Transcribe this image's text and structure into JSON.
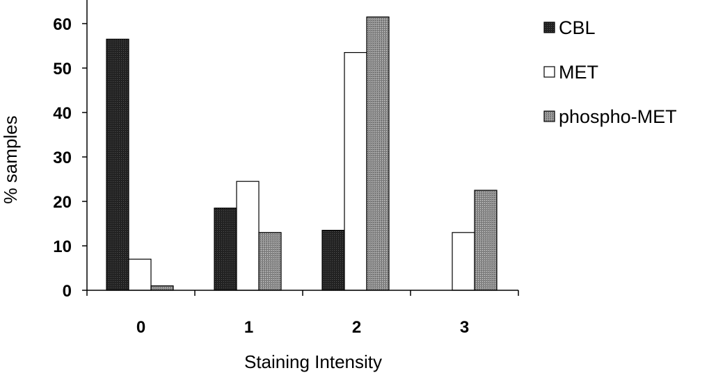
{
  "chart_data": {
    "type": "bar",
    "categories": [
      "0",
      "1",
      "2",
      "3"
    ],
    "series": [
      {
        "name": "CBL",
        "values": [
          56.5,
          18.5,
          13.5,
          0
        ],
        "color": "#1a1a1a",
        "fill_style": "solid-dark"
      },
      {
        "name": "MET",
        "values": [
          7,
          24.5,
          53.5,
          13
        ],
        "color": "#ffffff",
        "fill_style": "white"
      },
      {
        "name": "phospho-MET",
        "values": [
          1,
          13,
          61.5,
          22.5
        ],
        "color": "#9a9a9a",
        "fill_style": "dotted-gray"
      }
    ],
    "xlabel": "Staining Intensity",
    "ylabel": "% samples",
    "ylim": [
      0,
      65
    ],
    "yticks": [
      0,
      10,
      20,
      30,
      40,
      50,
      60
    ],
    "grid": false,
    "legend_position": "right"
  }
}
